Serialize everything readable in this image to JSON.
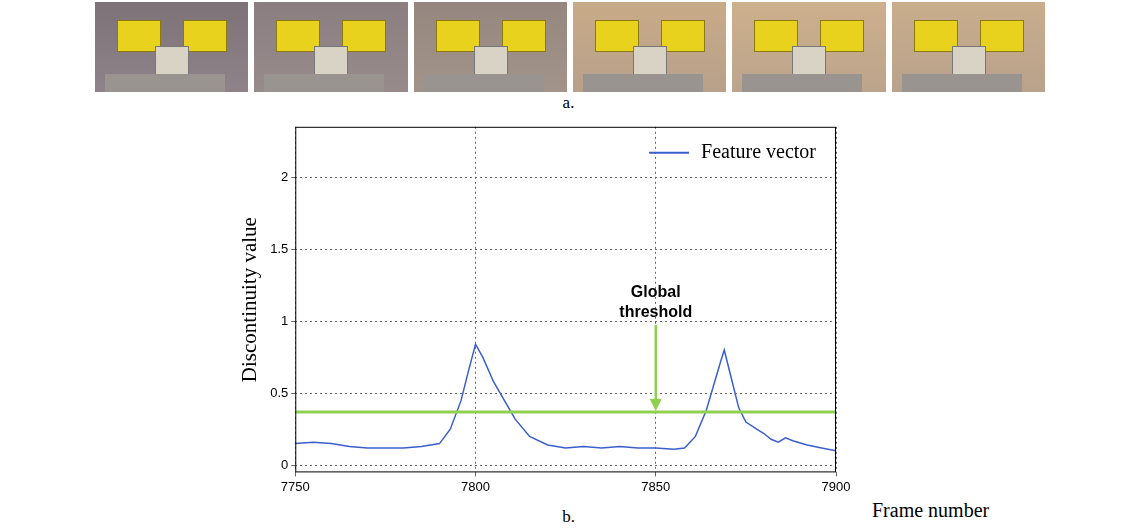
{
  "panel_labels": [
    "a.",
    "b."
  ],
  "chart_data": {
    "type": "line",
    "x_label": "Frame number",
    "y_label": "Discontinuity value",
    "series": [
      {
        "name": "Feature vector",
        "color": "#3a5fcd",
        "x": [
          7750,
          7755,
          7760,
          7765,
          7770,
          7775,
          7780,
          7785,
          7790,
          7793,
          7796,
          7798,
          7800,
          7802,
          7805,
          7808,
          7811,
          7815,
          7820,
          7825,
          7830,
          7835,
          7840,
          7845,
          7850,
          7855,
          7858,
          7861,
          7864,
          7866,
          7868,
          7869,
          7871,
          7873,
          7875,
          7878,
          7880,
          7882,
          7884,
          7886,
          7888,
          7892,
          7896,
          7900
        ],
        "values": [
          0.15,
          0.16,
          0.15,
          0.13,
          0.12,
          0.12,
          0.12,
          0.13,
          0.15,
          0.25,
          0.45,
          0.65,
          0.84,
          0.75,
          0.58,
          0.45,
          0.32,
          0.2,
          0.14,
          0.12,
          0.13,
          0.12,
          0.13,
          0.12,
          0.12,
          0.11,
          0.12,
          0.2,
          0.38,
          0.55,
          0.72,
          0.8,
          0.6,
          0.4,
          0.3,
          0.25,
          0.22,
          0.18,
          0.16,
          0.19,
          0.17,
          0.14,
          0.12,
          0.1
        ]
      }
    ],
    "threshold": {
      "value": 0.37,
      "color": "#8fd14f"
    },
    "annotations": [
      {
        "text": "Global threshold",
        "x": 7850,
        "y": 0.37
      }
    ],
    "xlim": [
      7750,
      7900
    ],
    "xticks": [
      7750,
      7800,
      7850,
      7900
    ],
    "ylim": [
      -0.05,
      2.35
    ],
    "yticks": [
      0,
      0.5,
      1,
      1.5,
      2
    ],
    "grid": true,
    "legend": "upper right"
  }
}
